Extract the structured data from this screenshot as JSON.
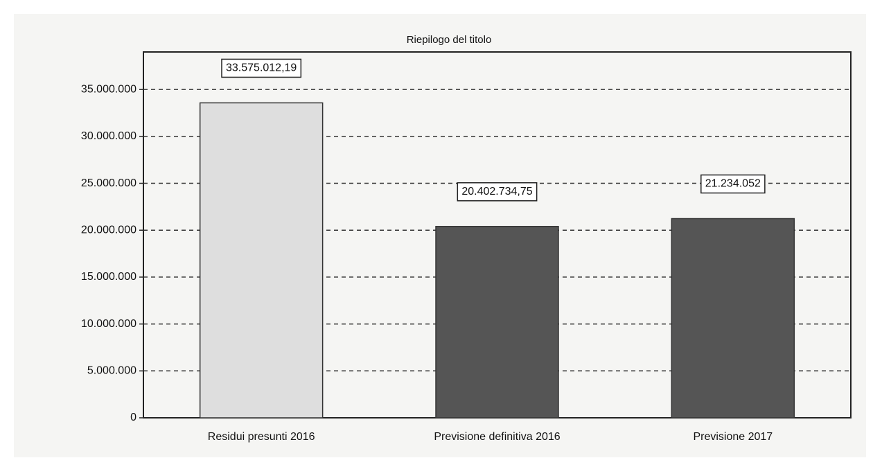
{
  "chart_data": {
    "type": "bar",
    "title": "Riepilogo del titolo",
    "categories": [
      "Residui presunti 2016",
      "Previsione definitiva 2016",
      "Previsione 2017"
    ],
    "values": [
      33575012.19,
      20402734.75,
      21234052
    ],
    "value_labels": [
      "33.575.012,19",
      "20.402.734,75",
      "21.234.052"
    ],
    "colors": [
      "#dedede",
      "#555555",
      "#555555"
    ],
    "ylim": [
      0,
      39000000
    ],
    "yticks": [
      0,
      {
        "value": 5000000,
        "label": "5.000.000"
      },
      {
        "value": 10000000,
        "label": "10.000.000"
      },
      {
        "value": 15000000,
        "label": "15.000.000"
      },
      {
        "value": 20000000,
        "label": "20.000.000"
      },
      {
        "value": 25000000,
        "label": "25.000.000"
      },
      {
        "value": 30000000,
        "label": "30.000.000"
      },
      {
        "value": 35000000,
        "label": "35.000.000"
      }
    ],
    "grid": true
  }
}
